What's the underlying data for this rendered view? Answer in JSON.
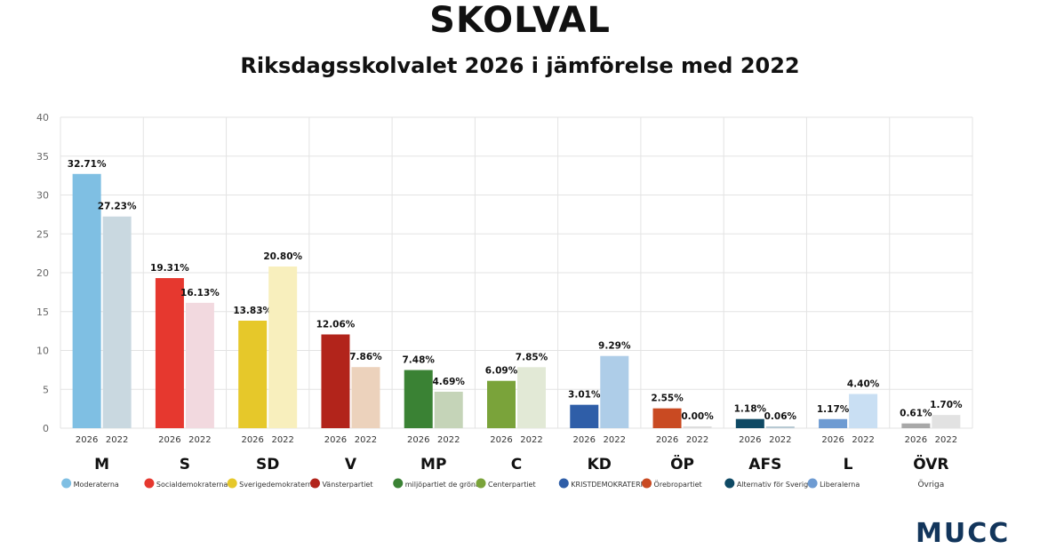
{
  "title": "SKOLVAL",
  "subtitle": "Riksdagsskolvalet 2026 i jämförelse med 2022",
  "brand": "MUCC",
  "chart_data": {
    "type": "bar",
    "title": "Riksdagsskolvalet 2026 i jämförelse med 2022",
    "xlabel": "",
    "ylabel": "",
    "ylim": [
      0,
      40
    ],
    "yticks": [
      "0",
      "5",
      "10",
      "15",
      "20",
      "25",
      "30",
      "35",
      "40"
    ],
    "grid": true,
    "series_labels": [
      "2026",
      "2022"
    ],
    "parties": [
      {
        "code": "M",
        "name": "Moderaterna",
        "v2026": 32.71,
        "v2022": 27.23,
        "l2026": "32.71%",
        "l2022": "27.23%",
        "c2026": "#7fbfe3",
        "c2022": "#c9d8e0",
        "icon": "moderaterna-logo-icon"
      },
      {
        "code": "S",
        "name": "Socialdemokraterna",
        "v2026": 19.31,
        "v2022": 16.13,
        "l2026": "19.31%",
        "l2022": "16.13%",
        "c2026": "#e6382f",
        "c2022": "#f2d9df",
        "icon": "socialdemokraterna-rose-icon"
      },
      {
        "code": "SD",
        "name": "Sverigedemokraterna",
        "v2026": 13.83,
        "v2022": 20.8,
        "l2026": "13.83%",
        "l2022": "20.80%",
        "c2026": "#e6c82a",
        "c2022": "#f8efbd",
        "icon": "sverigedemokraterna-flower-icon"
      },
      {
        "code": "V",
        "name": "Vänsterpartiet",
        "v2026": 12.06,
        "v2022": 7.86,
        "l2026": "12.06%",
        "l2022": "7.86%",
        "c2026": "#b2241b",
        "c2022": "#ecd2bc",
        "icon": "vansterpartiet-v-icon"
      },
      {
        "code": "MP",
        "name": "miljöpartiet de gröna",
        "v2026": 7.48,
        "v2022": 4.69,
        "l2026": "7.48%",
        "l2022": "4.69%",
        "c2026": "#3a8234",
        "c2022": "#c5d4b8",
        "icon": "miljopartiet-dandelion-icon"
      },
      {
        "code": "C",
        "name": "Centerpartiet",
        "v2026": 6.09,
        "v2022": 7.85,
        "l2026": "6.09%",
        "l2022": "7.85%",
        "c2026": "#7aa33a",
        "c2022": "#e2e9d6",
        "icon": "centerpartiet-clover-icon"
      },
      {
        "code": "KD",
        "name": "KRISTDEMOKRATERNA",
        "v2026": 3.01,
        "v2022": 9.29,
        "l2026": "3.01%",
        "l2022": "9.29%",
        "c2026": "#2f5ea8",
        "c2022": "#aecde8",
        "icon": "kristdemokraterna-logo-icon"
      },
      {
        "code": "ÖP",
        "name": "Örebropartiet",
        "v2026": 2.55,
        "v2022": 0.0,
        "l2026": "2.55%",
        "l2022": "0.00%",
        "c2026": "#c94a22",
        "c2022": "#dddddd",
        "icon": "orebropartiet-logo-icon"
      },
      {
        "code": "AFS",
        "name": "Alternativ för Sverige",
        "v2026": 1.18,
        "v2022": 0.06,
        "l2026": "1.18%",
        "l2022": "0.06%",
        "c2026": "#0e4964",
        "c2022": "#b7c9d3",
        "icon": "alternativ-for-sverige-heart-icon"
      },
      {
        "code": "L",
        "name": "Liberalerna",
        "v2026": 1.17,
        "v2022": 4.4,
        "l2026": "1.17%",
        "l2022": "4.40%",
        "c2026": "#6e9bd2",
        "c2022": "#c9dff3",
        "icon": "liberalerna-logo-icon"
      },
      {
        "code": "ÖVR",
        "name": "Övriga",
        "v2026": 0.61,
        "v2022": 1.7,
        "l2026": "0.61%",
        "l2022": "1.70%",
        "c2026": "#a8a8a8",
        "c2022": "#e2e2e2",
        "icon": ""
      }
    ]
  }
}
